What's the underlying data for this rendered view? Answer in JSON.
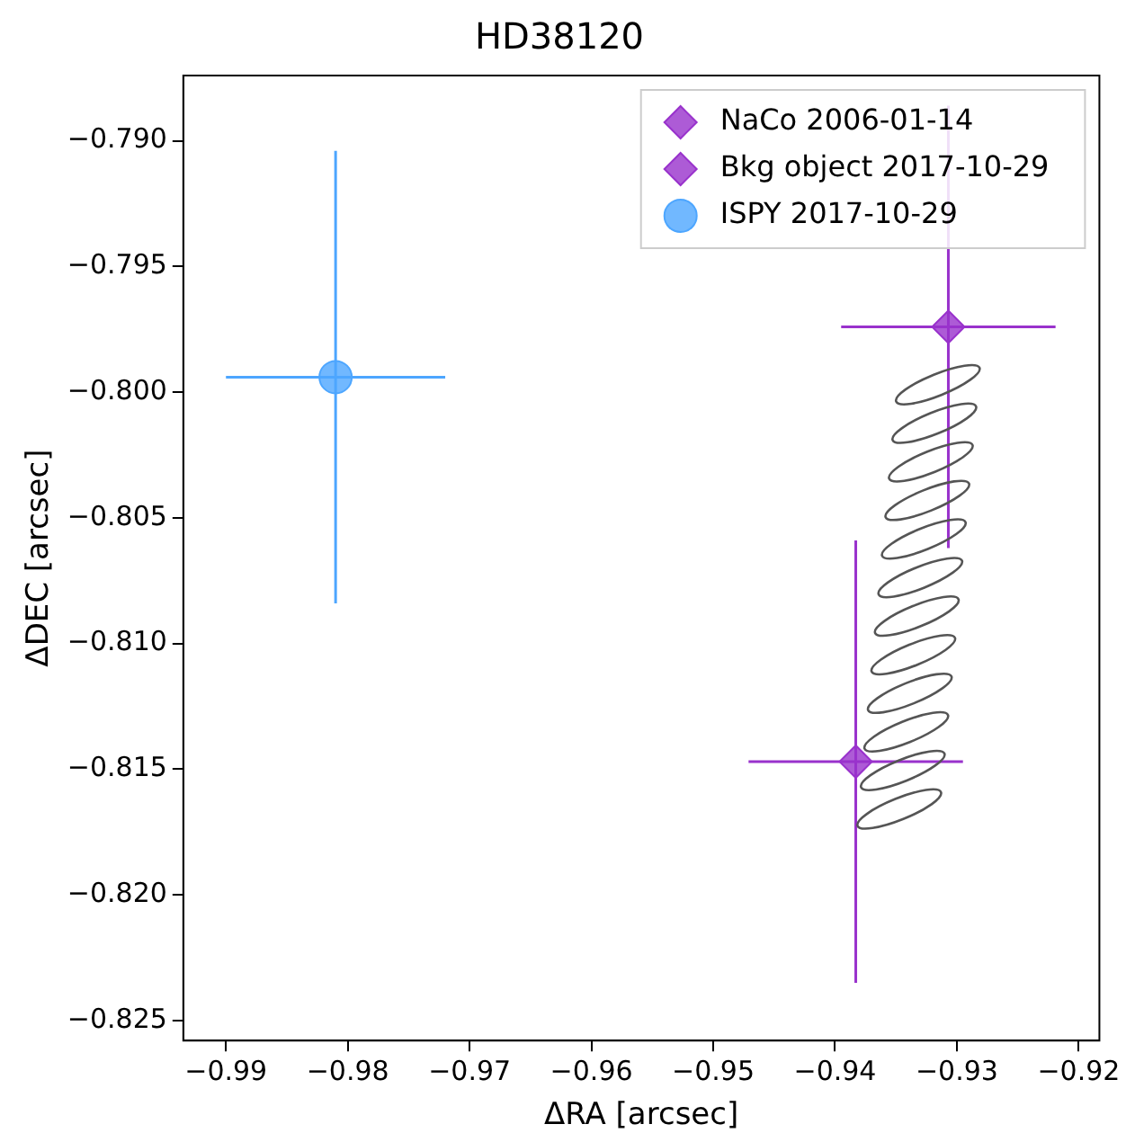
{
  "chart_data": {
    "type": "scatter",
    "title": "HD38120",
    "xlabel": "ΔRA [arcsec]",
    "ylabel": "ΔDEC [arcsec]",
    "xlim": [
      -0.9935,
      -0.9183
    ],
    "ylim": [
      -0.8258,
      -0.7874
    ],
    "xticks": [
      {
        "value": -0.99,
        "label": "−0.99"
      },
      {
        "value": -0.98,
        "label": "−0.98"
      },
      {
        "value": -0.97,
        "label": "−0.97"
      },
      {
        "value": -0.96,
        "label": "−0.96"
      },
      {
        "value": -0.95,
        "label": "−0.95"
      },
      {
        "value": -0.94,
        "label": "−0.94"
      },
      {
        "value": -0.93,
        "label": "−0.93"
      },
      {
        "value": -0.92,
        "label": "−0.92"
      }
    ],
    "yticks": [
      {
        "value": -0.825,
        "label": "−0.825"
      },
      {
        "value": -0.82,
        "label": "−0.820"
      },
      {
        "value": -0.815,
        "label": "−0.815"
      },
      {
        "value": -0.81,
        "label": "−0.810"
      },
      {
        "value": -0.805,
        "label": "−0.805"
      },
      {
        "value": -0.8,
        "label": "−0.800"
      },
      {
        "value": -0.795,
        "label": "−0.795"
      },
      {
        "value": -0.79,
        "label": "−0.790"
      }
    ],
    "grid": false,
    "legend": "top right",
    "series": [
      {
        "name": "NaCo 2006-01-14",
        "color": "#9932cc",
        "marker": "diamond",
        "x": [
          -0.9383
        ],
        "values": [
          -0.8147
        ],
        "errors": [
          0.0088
        ],
        "xerrors": [
          0.0088
        ]
      },
      {
        "name": "Bkg object 2017-10-29",
        "color": "#9932cc",
        "marker": "diamond",
        "x": [
          -0.9307
        ],
        "values": [
          -0.7974
        ],
        "errors": [
          0.0088
        ],
        "xerrors": [
          0.0088
        ]
      },
      {
        "name": "ISPY 2017-10-29",
        "color": "#4da6ff",
        "marker": "circle",
        "x": [
          -0.981
        ],
        "values": [
          -0.7994
        ],
        "errors": [
          0.009
        ],
        "xerrors": [
          0.009
        ]
      }
    ]
  }
}
